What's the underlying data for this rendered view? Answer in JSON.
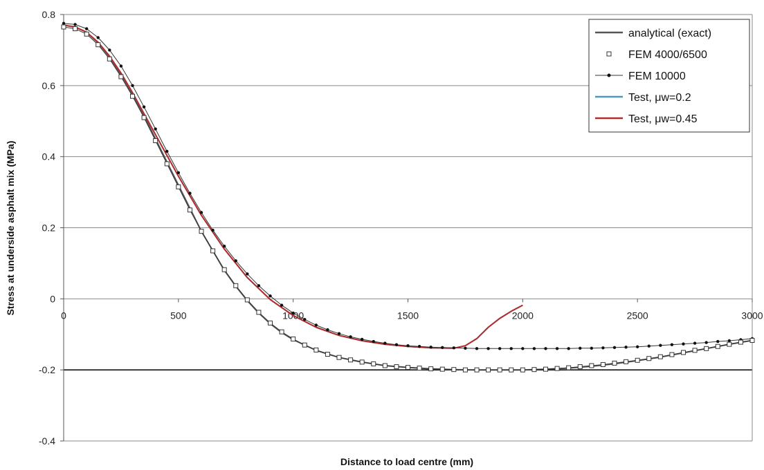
{
  "chart_data": {
    "type": "line",
    "title": "",
    "xlabel": "Distance to load centre (mm)",
    "ylabel": "Stress at underside asphalt mix (MPa)",
    "xlim": [
      0,
      3000
    ],
    "ylim": [
      -0.4,
      0.8
    ],
    "x_ticks": [
      0,
      500,
      1000,
      1500,
      2000,
      2500,
      3000
    ],
    "y_ticks": [
      0.8,
      0.6,
      0.4,
      0.2,
      0,
      -0.2,
      -0.4
    ],
    "y_tick_labels": [
      "0.8",
      "0.6",
      "0.4",
      "0.2",
      "0",
      "-0.2",
      "-0.4"
    ],
    "grid": "horizontal",
    "legend_position": "top-right",
    "series": [
      {
        "name": "analytical (exact)",
        "color": "#555555",
        "marker": "none",
        "x": [
          0,
          50,
          100,
          150,
          200,
          250,
          300,
          350,
          400,
          450,
          500,
          550,
          600,
          650,
          700,
          750,
          800,
          850,
          900,
          950,
          1000,
          1100,
          1200,
          1300,
          1400,
          1500,
          1600,
          1700,
          1800,
          1900,
          2000,
          2100,
          2200,
          2300,
          2400,
          2500,
          2600,
          2700,
          2800,
          2900,
          3000
        ],
        "y": [
          0.77,
          0.765,
          0.75,
          0.72,
          0.68,
          0.63,
          0.575,
          0.515,
          0.45,
          0.385,
          0.32,
          0.255,
          0.19,
          0.135,
          0.08,
          0.035,
          -0.005,
          -0.04,
          -0.07,
          -0.095,
          -0.115,
          -0.145,
          -0.165,
          -0.178,
          -0.188,
          -0.193,
          -0.197,
          -0.199,
          -0.2,
          -0.2,
          -0.2,
          -0.198,
          -0.195,
          -0.19,
          -0.183,
          -0.174,
          -0.164,
          -0.152,
          -0.14,
          -0.128,
          -0.117
        ]
      },
      {
        "name": "FEM 4000/6500",
        "color": "#333333",
        "marker": "square",
        "x": [
          0,
          50,
          100,
          150,
          200,
          250,
          300,
          350,
          400,
          450,
          500,
          550,
          600,
          650,
          700,
          750,
          800,
          850,
          900,
          950,
          1000,
          1050,
          1100,
          1150,
          1200,
          1250,
          1300,
          1350,
          1400,
          1450,
          1500,
          1550,
          1600,
          1650,
          1700,
          1750,
          1800,
          1850,
          1900,
          1950,
          2000,
          2050,
          2100,
          2150,
          2200,
          2250,
          2300,
          2350,
          2400,
          2450,
          2500,
          2550,
          2600,
          2650,
          2700,
          2750,
          2800,
          2850,
          2900,
          2950,
          3000
        ],
        "y": [
          0.765,
          0.76,
          0.745,
          0.715,
          0.675,
          0.625,
          0.57,
          0.51,
          0.445,
          0.38,
          0.315,
          0.25,
          0.19,
          0.135,
          0.082,
          0.037,
          -0.003,
          -0.038,
          -0.068,
          -0.093,
          -0.113,
          -0.13,
          -0.144,
          -0.156,
          -0.165,
          -0.172,
          -0.178,
          -0.183,
          -0.188,
          -0.191,
          -0.193,
          -0.195,
          -0.197,
          -0.198,
          -0.199,
          -0.2,
          -0.2,
          -0.2,
          -0.2,
          -0.2,
          -0.2,
          -0.199,
          -0.198,
          -0.196,
          -0.194,
          -0.191,
          -0.188,
          -0.185,
          -0.181,
          -0.177,
          -0.173,
          -0.168,
          -0.163,
          -0.157,
          -0.151,
          -0.145,
          -0.14,
          -0.134,
          -0.128,
          -0.122,
          -0.117
        ]
      },
      {
        "name": "FEM 10000",
        "color": "#333333",
        "marker": "dot",
        "x": [
          0,
          50,
          100,
          150,
          200,
          250,
          300,
          350,
          400,
          450,
          500,
          550,
          600,
          650,
          700,
          750,
          800,
          850,
          900,
          950,
          1000,
          1050,
          1100,
          1150,
          1200,
          1250,
          1300,
          1350,
          1400,
          1450,
          1500,
          1550,
          1600,
          1650,
          1700,
          1750,
          1800,
          1850,
          1900,
          1950,
          2000,
          2050,
          2100,
          2150,
          2200,
          2250,
          2300,
          2350,
          2400,
          2450,
          2500,
          2550,
          2600,
          2650,
          2700,
          2750,
          2800,
          2850,
          2900,
          2950,
          3000
        ],
        "y": [
          0.775,
          0.772,
          0.76,
          0.735,
          0.7,
          0.655,
          0.6,
          0.54,
          0.478,
          0.415,
          0.355,
          0.297,
          0.243,
          0.193,
          0.148,
          0.107,
          0.07,
          0.037,
          0.008,
          -0.018,
          -0.04,
          -0.058,
          -0.074,
          -0.087,
          -0.098,
          -0.107,
          -0.114,
          -0.12,
          -0.125,
          -0.129,
          -0.132,
          -0.134,
          -0.136,
          -0.137,
          -0.138,
          -0.139,
          -0.14,
          -0.14,
          -0.14,
          -0.14,
          -0.14,
          -0.14,
          -0.14,
          -0.14,
          -0.14,
          -0.139,
          -0.139,
          -0.138,
          -0.137,
          -0.136,
          -0.135,
          -0.133,
          -0.131,
          -0.129,
          -0.127,
          -0.125,
          -0.123,
          -0.12,
          -0.118,
          -0.115,
          -0.112
        ]
      },
      {
        "name": "Test, μw=0.2",
        "color": "#4a9bb0",
        "marker": "none",
        "x": [
          0,
          50,
          100,
          150,
          200,
          250,
          300,
          400,
          500,
          600,
          700,
          800,
          900,
          1000,
          1100,
          1200,
          1300,
          1400,
          1500,
          1600,
          1700,
          1750,
          1800,
          1850,
          1900,
          1950,
          2000
        ],
        "y": [
          0.77,
          0.765,
          0.75,
          0.722,
          0.683,
          0.635,
          0.58,
          0.462,
          0.345,
          0.235,
          0.14,
          0.06,
          -0.002,
          -0.047,
          -0.08,
          -0.103,
          -0.118,
          -0.128,
          -0.134,
          -0.138,
          -0.139,
          -0.132,
          -0.112,
          -0.08,
          -0.055,
          -0.035,
          -0.018
        ]
      },
      {
        "name": "Test, μw=0.45",
        "color": "#b52a2a",
        "marker": "none",
        "x": [
          0,
          50,
          100,
          150,
          200,
          250,
          300,
          400,
          500,
          600,
          700,
          800,
          900,
          1000,
          1100,
          1200,
          1300,
          1400,
          1500,
          1600,
          1700,
          1750,
          1800,
          1850,
          1900,
          1950,
          2000
        ],
        "y": [
          0.77,
          0.765,
          0.75,
          0.722,
          0.683,
          0.635,
          0.58,
          0.462,
          0.345,
          0.235,
          0.14,
          0.06,
          -0.002,
          -0.047,
          -0.08,
          -0.103,
          -0.118,
          -0.128,
          -0.134,
          -0.138,
          -0.139,
          -0.132,
          -0.112,
          -0.08,
          -0.055,
          -0.035,
          -0.018
        ]
      }
    ]
  }
}
